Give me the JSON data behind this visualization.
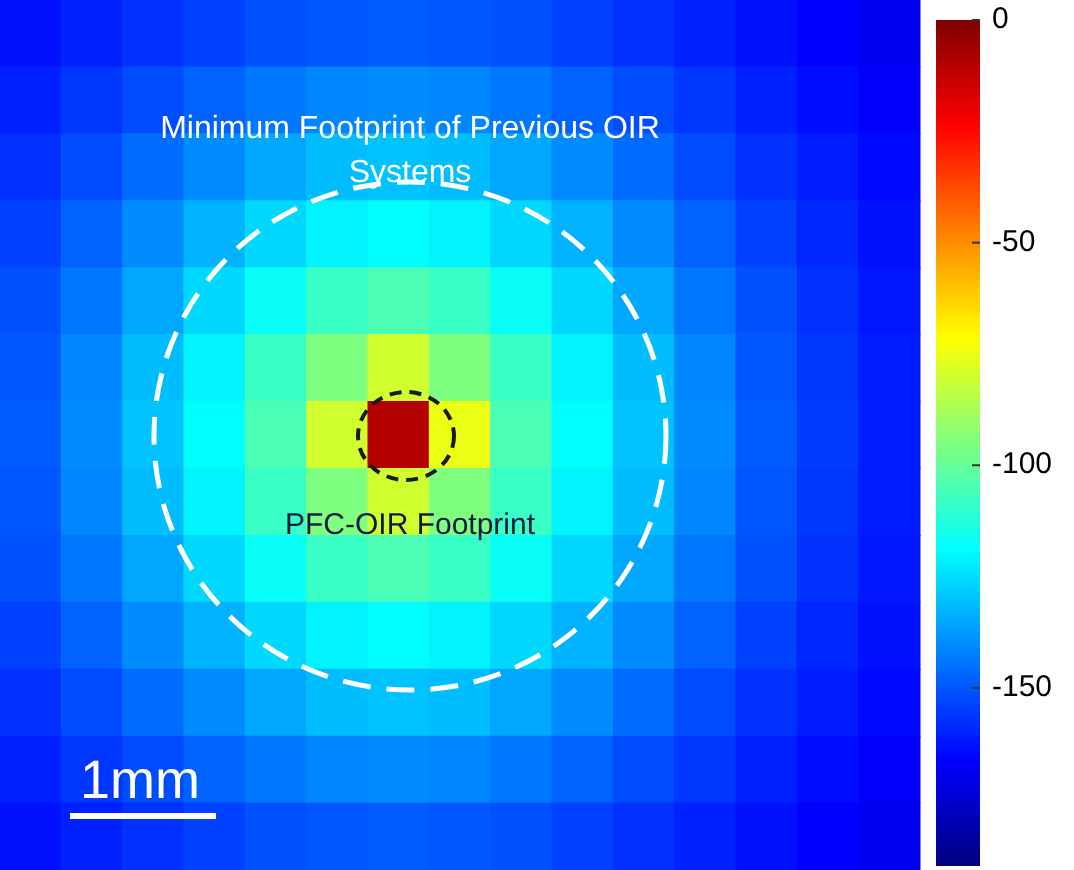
{
  "chart_data": {
    "type": "heatmap",
    "categories": [
      null,
      null,
      null,
      null,
      null,
      null,
      null,
      null,
      null,
      null,
      null,
      null,
      null,
      null,
      null
    ],
    "y_categories": [
      null,
      null,
      null,
      null,
      null,
      null,
      null,
      null,
      null,
      null,
      null,
      null,
      null
    ],
    "cells": [
      [
        -163,
        -160,
        -157,
        -154,
        -151,
        -150,
        -149,
        -150,
        -151,
        -154,
        -157,
        -160,
        -163,
        -166,
        -169
      ],
      [
        -160,
        -156,
        -152,
        -148,
        -144,
        -141,
        -140,
        -141,
        -144,
        -148,
        -152,
        -156,
        -160,
        -164,
        -167
      ],
      [
        -157,
        -152,
        -146,
        -140,
        -135,
        -131,
        -130,
        -131,
        -135,
        -140,
        -146,
        -152,
        -157,
        -161,
        -165
      ],
      [
        -154,
        -148,
        -140,
        -133,
        -126,
        -121,
        -119,
        -121,
        -126,
        -133,
        -140,
        -148,
        -154,
        -159,
        -163
      ],
      [
        -151,
        -144,
        -135,
        -126,
        -117,
        -108,
        -105,
        -108,
        -117,
        -126,
        -135,
        -144,
        -151,
        -157,
        -162
      ],
      [
        -150,
        -141,
        -131,
        -121,
        -108,
        -95,
        -80,
        -95,
        -108,
        -121,
        -131,
        -141,
        -150,
        -156,
        -161
      ],
      [
        -149,
        -140,
        -130,
        -119,
        -105,
        -80,
        -10,
        -75,
        -105,
        -119,
        -130,
        -140,
        -149,
        -155,
        -161
      ],
      [
        -150,
        -141,
        -131,
        -121,
        -108,
        -95,
        -80,
        -95,
        -108,
        -121,
        -131,
        -141,
        -150,
        -156,
        -161
      ],
      [
        -151,
        -144,
        -135,
        -126,
        -117,
        -108,
        -105,
        -108,
        -117,
        -126,
        -135,
        -144,
        -151,
        -157,
        -162
      ],
      [
        -154,
        -148,
        -140,
        -133,
        -126,
        -121,
        -119,
        -121,
        -126,
        -133,
        -140,
        -148,
        -154,
        -159,
        -163
      ],
      [
        -157,
        -152,
        -146,
        -140,
        -135,
        -131,
        -130,
        -131,
        -135,
        -140,
        -146,
        -152,
        -157,
        -161,
        -165
      ],
      [
        -160,
        -156,
        -152,
        -148,
        -144,
        -141,
        -140,
        -141,
        -144,
        -148,
        -152,
        -156,
        -160,
        -164,
        -167
      ],
      [
        -163,
        -160,
        -157,
        -154,
        -151,
        -150,
        -149,
        -150,
        -151,
        -154,
        -157,
        -160,
        -163,
        -166,
        -169
      ]
    ],
    "clim": [
      -190,
      0
    ],
    "cticks": [
      0,
      -50,
      -100,
      -150
    ],
    "annotations": [
      "Minimum Footprint of Previous OIR Systems",
      "PFC-OIR Footprint",
      "1mm"
    ]
  }
}
